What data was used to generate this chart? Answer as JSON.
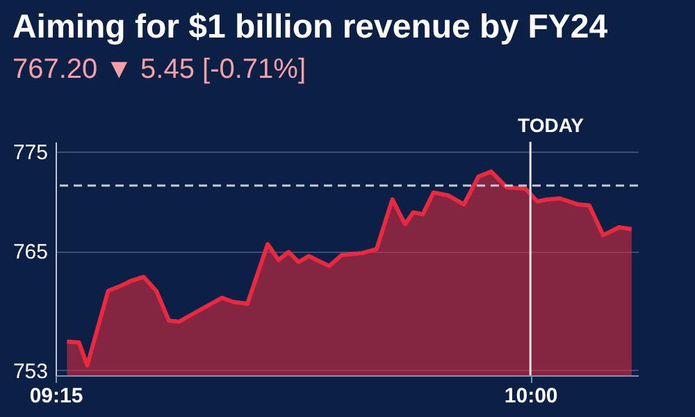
{
  "chart_data": {
    "type": "area",
    "title": "Aiming for $1 billion revenue by FY24",
    "subtitle": "767.20 ▼ 5.45 [-0.71%]",
    "annotations": [
      "TODAY"
    ],
    "x": [
      9.268,
      9.287,
      9.3,
      9.333,
      9.353,
      9.369,
      9.389,
      9.409,
      9.429,
      9.445,
      9.473,
      9.513,
      9.53,
      9.553,
      9.585,
      9.602,
      9.618,
      9.634,
      9.65,
      9.682,
      9.702,
      9.734,
      9.757,
      9.782,
      9.802,
      9.815,
      9.83,
      9.847,
      9.87,
      9.895,
      9.918,
      9.938,
      9.963,
      9.992,
      10.011,
      10.027,
      10.047,
      10.075,
      10.093,
      10.115,
      10.14,
      10.16
    ],
    "series": [
      {
        "color": "#e8293f",
        "values": [
          755.9,
          755.8,
          753.5,
          761.0,
          761.5,
          762.0,
          762.4,
          761.0,
          758.0,
          757.9,
          758.9,
          760.3,
          759.9,
          759.7,
          765.7,
          764.1,
          764.9,
          763.9,
          764.5,
          763.5,
          764.6,
          764.8,
          765.2,
          770.2,
          767.7,
          768.9,
          768.7,
          770.9,
          770.6,
          769.7,
          772.5,
          773.0,
          771.4,
          771.3,
          770.0,
          770.2,
          770.3,
          769.7,
          769.6,
          766.6,
          767.4,
          767.2
        ]
      }
    ],
    "xlim": [
      9.25,
      10.17
    ],
    "xticks": [
      {
        "value": 9.25,
        "label": "09:15"
      },
      {
        "value": 10.0,
        "label": "10:00"
      }
    ],
    "ylim": [
      752.5,
      776
    ],
    "yticks": [
      753,
      765,
      775
    ],
    "grid": "y",
    "ref_lines": [
      {
        "axis": "y",
        "value": 771.6,
        "line_style": "dashed",
        "color": "#c8ccd8"
      },
      {
        "axis": "x",
        "value": 10.0,
        "color": "#e6e6e6"
      }
    ]
  }
}
